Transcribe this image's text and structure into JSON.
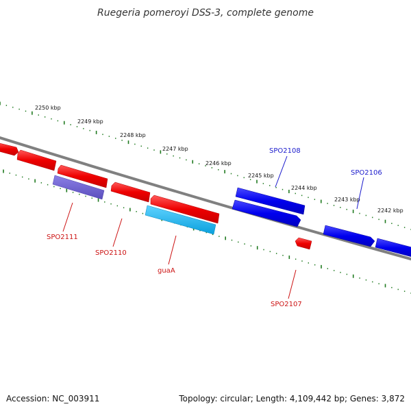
{
  "title": "Ruegeria pomeroyi DSS-3, complete genome",
  "footer": {
    "accession": "Accession: NC_003911",
    "summary": "Topology: circular; Length: 4,109,442 bp; Genes: 3,872"
  },
  "colors": {
    "backbone": "#808080",
    "ticks": "#1f7a1f",
    "gene_forward_strand": "#ff0000",
    "gene_reverse_strand": "#0000ee",
    "gene_rna": "#6a5acd",
    "gene_highlight": "#1ab3e6",
    "label_red": "#cc1111",
    "label_blue": "#1a1acc"
  },
  "kbp_labels": [
    "2250 kbp",
    "2249 kbp",
    "2248 kbp",
    "2247 kbp",
    "2246 kbp",
    "2245 kbp",
    "2244 kbp",
    "2243 kbp",
    "2242 kbp"
  ],
  "gene_labels": [
    {
      "id": "spo2108",
      "text": "SPO2108",
      "color": "blue"
    },
    {
      "id": "spo2106",
      "text": "SPO2106",
      "color": "blue"
    },
    {
      "id": "spo2111",
      "text": "SPO2111",
      "color": "red"
    },
    {
      "id": "spo2110",
      "text": "SPO2110",
      "color": "red"
    },
    {
      "id": "guaa",
      "text": "guaA",
      "color": "red"
    },
    {
      "id": "spo2107",
      "text": "SPO2107",
      "color": "red"
    }
  ]
}
